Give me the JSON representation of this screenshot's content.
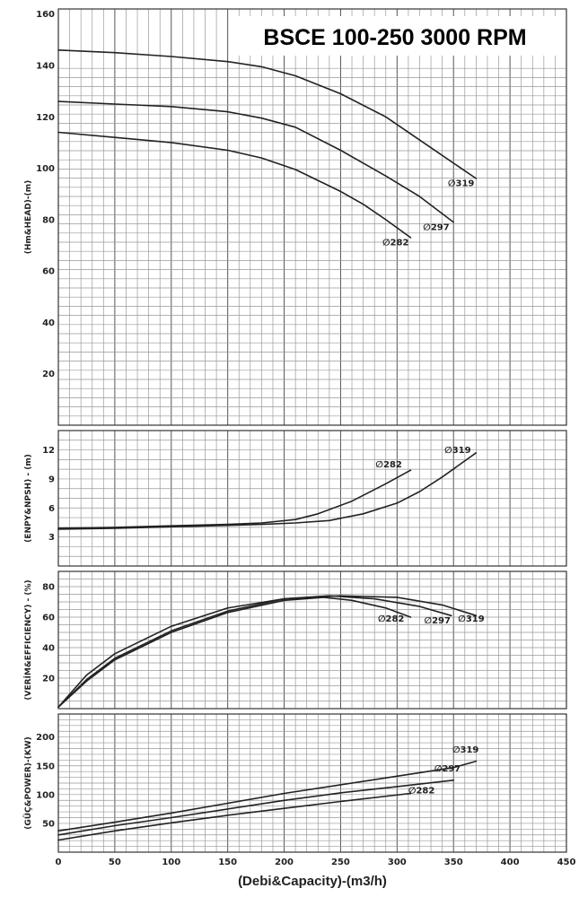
{
  "chart_data": {
    "type": "line",
    "title": "BSCE 100-250 3000 RPM",
    "xlabel": "(Debi&Capacity)-(m3/h)",
    "xlim": [
      0,
      450
    ],
    "xticks": [
      "0",
      "50",
      "100",
      "150",
      "200",
      "250",
      "300",
      "350",
      "400",
      "450"
    ],
    "panels": [
      {
        "id": "head",
        "ylabel": "(Hm&HEAD)-(m)",
        "ylim": [
          0,
          162
        ],
        "yticks": [
          "20",
          "40",
          "60",
          "80",
          "100",
          "120",
          "140",
          "160"
        ],
        "series": [
          {
            "name": "∅319",
            "x": [
              0,
              50,
              100,
              150,
              180,
              210,
              250,
              290,
              330,
              370
            ],
            "y": [
              146,
              145,
              143.5,
              141.5,
              139.5,
              136,
              129,
              120,
              108,
              96
            ]
          },
          {
            "name": "∅297",
            "x": [
              0,
              50,
              100,
              150,
              180,
              210,
              250,
              290,
              320,
              350
            ],
            "y": [
              126,
              125,
              124,
              122,
              119.5,
              116,
              107,
              97,
              89,
              79
            ]
          },
          {
            "name": "∅282",
            "x": [
              0,
              50,
              100,
              150,
              180,
              210,
              250,
              270,
              290,
              312
            ],
            "y": [
              114,
              112,
              110,
              107,
              104,
              99.5,
              91,
              86,
              80,
              73
            ]
          }
        ]
      },
      {
        "id": "npsh",
        "ylabel": "(ENPY&NPSH) - (m)",
        "ylim": [
          0,
          14
        ],
        "yticks": [
          "3",
          "6",
          "9",
          "12"
        ],
        "series": [
          {
            "name": "∅282",
            "x": [
              0,
              50,
              100,
              150,
              180,
              210,
              230,
              260,
              290,
              312
            ],
            "y": [
              3.9,
              4.0,
              4.15,
              4.3,
              4.45,
              4.8,
              5.4,
              6.7,
              8.5,
              9.9
            ]
          },
          {
            "name": "∅319",
            "x": [
              0,
              50,
              100,
              150,
              180,
              210,
              240,
              270,
              300,
              320,
              340,
              370
            ],
            "y": [
              3.8,
              3.9,
              4.05,
              4.2,
              4.3,
              4.45,
              4.7,
              5.4,
              6.5,
              7.7,
              9.2,
              11.7
            ]
          }
        ]
      },
      {
        "id": "efficiency",
        "ylabel": "(VERİM&EFFICIENCY) - (%)",
        "ylim": [
          0,
          90
        ],
        "yticks": [
          "20",
          "40",
          "60",
          "80"
        ],
        "series": [
          {
            "name": "∅282",
            "x": [
              0,
              25,
              50,
              100,
              150,
              200,
              235,
              260,
              290,
              312
            ],
            "y": [
              1,
              18,
              32,
              50,
              63,
              71,
              73,
              71,
              66,
              60
            ]
          },
          {
            "name": "∅297",
            "x": [
              0,
              25,
              50,
              100,
              150,
              200,
              240,
              280,
              320,
              348
            ],
            "y": [
              1,
              19,
              33,
              51,
              64,
              72,
              74,
              72,
              67,
              61
            ]
          },
          {
            "name": "∅319",
            "x": [
              0,
              25,
              50,
              100,
              150,
              200,
              250,
              300,
              340,
              370
            ],
            "y": [
              1,
              22,
              36,
              54,
              66,
              72,
              74,
              73,
              68,
              61
            ]
          }
        ]
      },
      {
        "id": "power",
        "ylabel": "(GÜÇ&POWER)-(KW)",
        "ylim": [
          0,
          240
        ],
        "yticks": [
          "50",
          "100",
          "150",
          "200"
        ],
        "series": [
          {
            "name": "∅319",
            "x": [
              0,
              50,
              100,
              150,
              200,
              250,
              300,
              350,
              370
            ],
            "y": [
              37,
              52,
              68,
              85,
              102,
              117,
              132,
              147,
              158
            ]
          },
          {
            "name": "∅297",
            "x": [
              0,
              50,
              100,
              150,
              200,
              250,
              300,
              350
            ],
            "y": [
              30,
              46,
              60,
              75,
              90,
              103,
              114,
              125
            ]
          },
          {
            "name": "∅282",
            "x": [
              0,
              50,
              100,
              150,
              200,
              250,
              312
            ],
            "y": [
              21,
              37,
              51,
              64,
              76,
              88,
              102
            ]
          }
        ]
      }
    ],
    "annotations": [
      {
        "panel": "head",
        "text": "∅319",
        "x": 345,
        "y": 93
      },
      {
        "panel": "head",
        "text": "∅297",
        "x": 323,
        "y": 76
      },
      {
        "panel": "head",
        "text": "∅282",
        "x": 287,
        "y": 70
      },
      {
        "panel": "npsh",
        "text": "∅282",
        "x": 281,
        "y": 10.2
      },
      {
        "panel": "npsh",
        "text": "∅319",
        "x": 342,
        "y": 11.7
      },
      {
        "panel": "efficiency",
        "text": "∅282",
        "x": 283,
        "y": 57
      },
      {
        "panel": "efficiency",
        "text": "∅297",
        "x": 324,
        "y": 56
      },
      {
        "panel": "efficiency",
        "text": "∅319",
        "x": 354,
        "y": 57
      },
      {
        "panel": "power",
        "text": "∅319",
        "x": 349,
        "y": 173
      },
      {
        "panel": "power",
        "text": "∅297",
        "x": 333,
        "y": 140
      },
      {
        "panel": "power",
        "text": "∅282",
        "x": 310,
        "y": 102
      }
    ]
  }
}
